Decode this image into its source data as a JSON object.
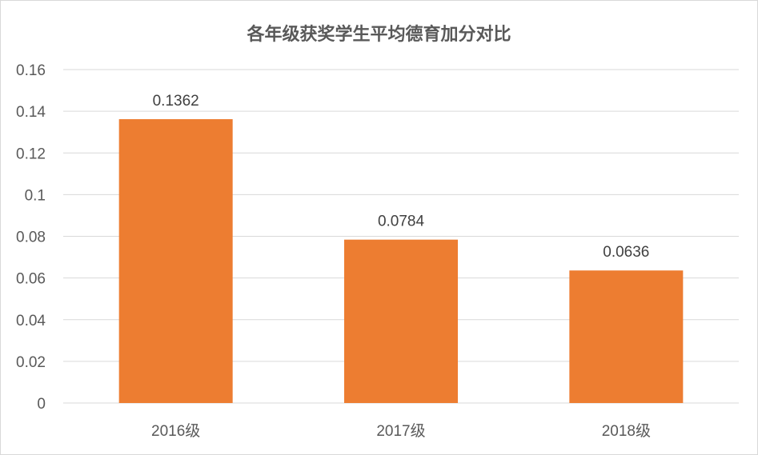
{
  "chart_data": {
    "type": "bar",
    "title": "各年级获奖学生平均德育加分对比",
    "categories": [
      "2016级",
      "2017级",
      "2018级"
    ],
    "values": [
      0.1362,
      0.0784,
      0.0636
    ],
    "data_labels": [
      "0.1362",
      "0.0784",
      "0.0636"
    ],
    "yticks": [
      "0",
      "0.02",
      "0.04",
      "0.06",
      "0.08",
      "0.1",
      "0.12",
      "0.14",
      "0.16"
    ],
    "ylim": [
      0,
      0.16
    ],
    "xlabel": "",
    "ylabel": "",
    "grid": true,
    "legend": "none",
    "bar_color": "#ed7d31",
    "grid_color": "#d9d9d9"
  }
}
